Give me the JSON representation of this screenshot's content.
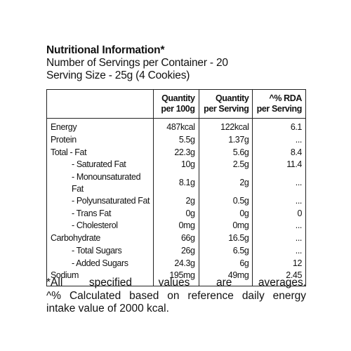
{
  "header": {
    "title": "Nutritional Information*",
    "servings": "Number of Servings per Container - 20",
    "serving_size": "Serving Size - 25g  (4 Cookies)"
  },
  "table": {
    "columns": [
      "Quantity per 100g",
      "Quantity per Serving",
      "^% RDA per Serving"
    ],
    "rows": [
      [
        "Energy",
        "487kcal",
        "122kcal",
        "6.1"
      ],
      [
        "Protein",
        "5.5g",
        "1.37g",
        "..."
      ],
      [
        "Total - Fat",
        "22.3g",
        "5.6g",
        "8.4"
      ],
      [
        "- Saturated Fat",
        "10g",
        "2.5g",
        "11.4"
      ],
      [
        "- Monounsaturated Fat",
        "8.1g",
        "2g",
        "..."
      ],
      [
        "- Polyunsaturated Fat",
        "2g",
        "0.5g",
        "..."
      ],
      [
        "- Trans Fat",
        "0g",
        "0g",
        "0"
      ],
      [
        "- Cholesterol",
        "0mg",
        "0mg",
        "..."
      ],
      [
        "Carbohydrate",
        "66g",
        "16.5g",
        "..."
      ],
      [
        "- Total Sugars",
        "26g",
        "6.5g",
        "..."
      ],
      [
        "- Added Sugars",
        "24.3g",
        "6g",
        "12"
      ],
      [
        "Sodium",
        "195mg",
        "49mg",
        "2.45"
      ]
    ]
  },
  "footnotes": [
    "*All specified values are averages.",
    "^% Calculated based on reference daily energy intake value of 2000 kcal."
  ]
}
